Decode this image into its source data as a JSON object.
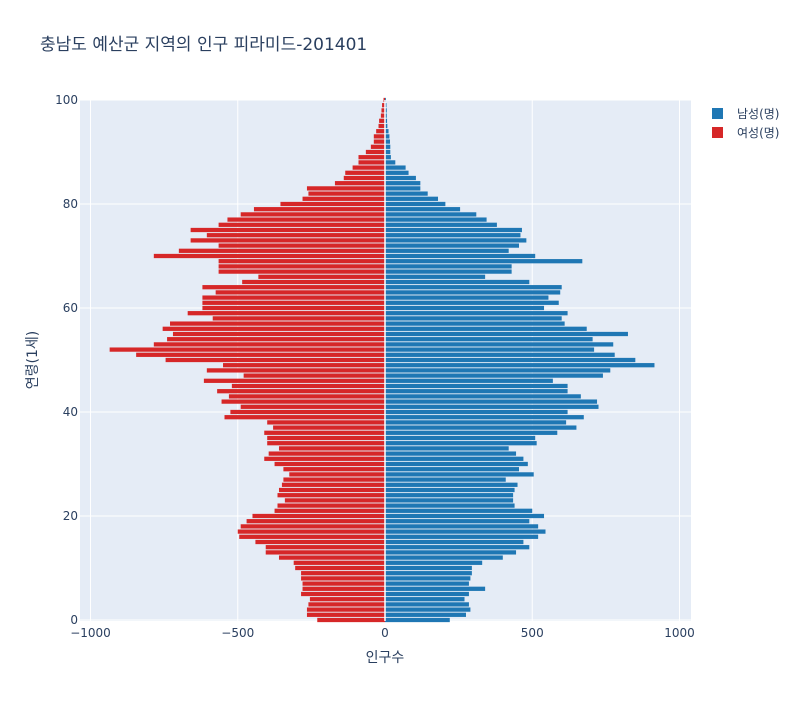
{
  "chart_data": {
    "type": "bar",
    "orientation": "horizontal",
    "title": "충남도 예산군 지역의 인구 피라미드-201401",
    "xlabel": "인구수",
    "ylabel": "연령(1세)",
    "xlim": [
      -1000,
      1000
    ],
    "ylim": [
      0,
      100
    ],
    "x_ticks": [
      -1000,
      -500,
      0,
      500,
      1000
    ],
    "x_tick_labels": [
      "−1000",
      "−500",
      "0",
      "500",
      "1000"
    ],
    "y_ticks": [
      0,
      20,
      40,
      60,
      80,
      100
    ],
    "y_tick_labels": [
      "0",
      "20",
      "40",
      "60",
      "80",
      "100"
    ],
    "legend_position": "top-right",
    "grid": true,
    "ages": [
      0,
      1,
      2,
      3,
      4,
      5,
      6,
      7,
      8,
      9,
      10,
      11,
      12,
      13,
      14,
      15,
      16,
      17,
      18,
      19,
      20,
      21,
      22,
      23,
      24,
      25,
      26,
      27,
      28,
      29,
      30,
      31,
      32,
      33,
      34,
      35,
      36,
      37,
      38,
      39,
      40,
      41,
      42,
      43,
      44,
      45,
      46,
      47,
      48,
      49,
      50,
      51,
      52,
      53,
      54,
      55,
      56,
      57,
      58,
      59,
      60,
      61,
      62,
      63,
      64,
      65,
      66,
      67,
      68,
      69,
      70,
      71,
      72,
      73,
      74,
      75,
      76,
      77,
      78,
      79,
      80,
      81,
      82,
      83,
      84,
      85,
      86,
      87,
      88,
      89,
      90,
      91,
      92,
      93,
      94,
      95,
      96,
      97,
      98,
      99,
      100
    ],
    "series": [
      {
        "name": "남성(명)",
        "color": "#1f77b4",
        "values": [
          220,
          275,
          290,
          285,
          270,
          285,
          340,
          285,
          290,
          295,
          295,
          330,
          400,
          445,
          490,
          470,
          520,
          545,
          520,
          490,
          540,
          500,
          440,
          435,
          435,
          440,
          450,
          410,
          505,
          455,
          485,
          470,
          445,
          420,
          515,
          510,
          585,
          650,
          615,
          675,
          620,
          725,
          720,
          665,
          620,
          620,
          570,
          740,
          765,
          915,
          850,
          780,
          710,
          775,
          705,
          825,
          685,
          610,
          600,
          620,
          540,
          590,
          555,
          595,
          600,
          490,
          340,
          430,
          430,
          670,
          510,
          420,
          455,
          480,
          460,
          465,
          380,
          345,
          310,
          255,
          205,
          180,
          145,
          120,
          120,
          105,
          80,
          70,
          35,
          20,
          18,
          18,
          17,
          15,
          12,
          8,
          7,
          6,
          6,
          5,
          3
        ]
      },
      {
        "name": "여성(명)",
        "color": "#d62728",
        "values": [
          -230,
          -265,
          -265,
          -260,
          -255,
          -285,
          -280,
          -280,
          -285,
          -285,
          -305,
          -310,
          -360,
          -405,
          -405,
          -440,
          -495,
          -500,
          -490,
          -470,
          -450,
          -375,
          -365,
          -340,
          -365,
          -360,
          -350,
          -345,
          -325,
          -345,
          -375,
          -410,
          -395,
          -360,
          -400,
          -400,
          -410,
          -380,
          -400,
          -545,
          -525,
          -490,
          -555,
          -530,
          -570,
          -520,
          -615,
          -480,
          -605,
          -550,
          -745,
          -845,
          -935,
          -785,
          -740,
          -720,
          -755,
          -730,
          -585,
          -670,
          -620,
          -620,
          -620,
          -575,
          -620,
          -485,
          -430,
          -565,
          -565,
          -565,
          -785,
          -700,
          -565,
          -660,
          -605,
          -660,
          -565,
          -535,
          -490,
          -445,
          -355,
          -280,
          -260,
          -265,
          -170,
          -140,
          -135,
          -110,
          -90,
          -90,
          -65,
          -48,
          -38,
          -38,
          -30,
          -22,
          -20,
          -14,
          -12,
          -10,
          -5
        ]
      }
    ]
  }
}
